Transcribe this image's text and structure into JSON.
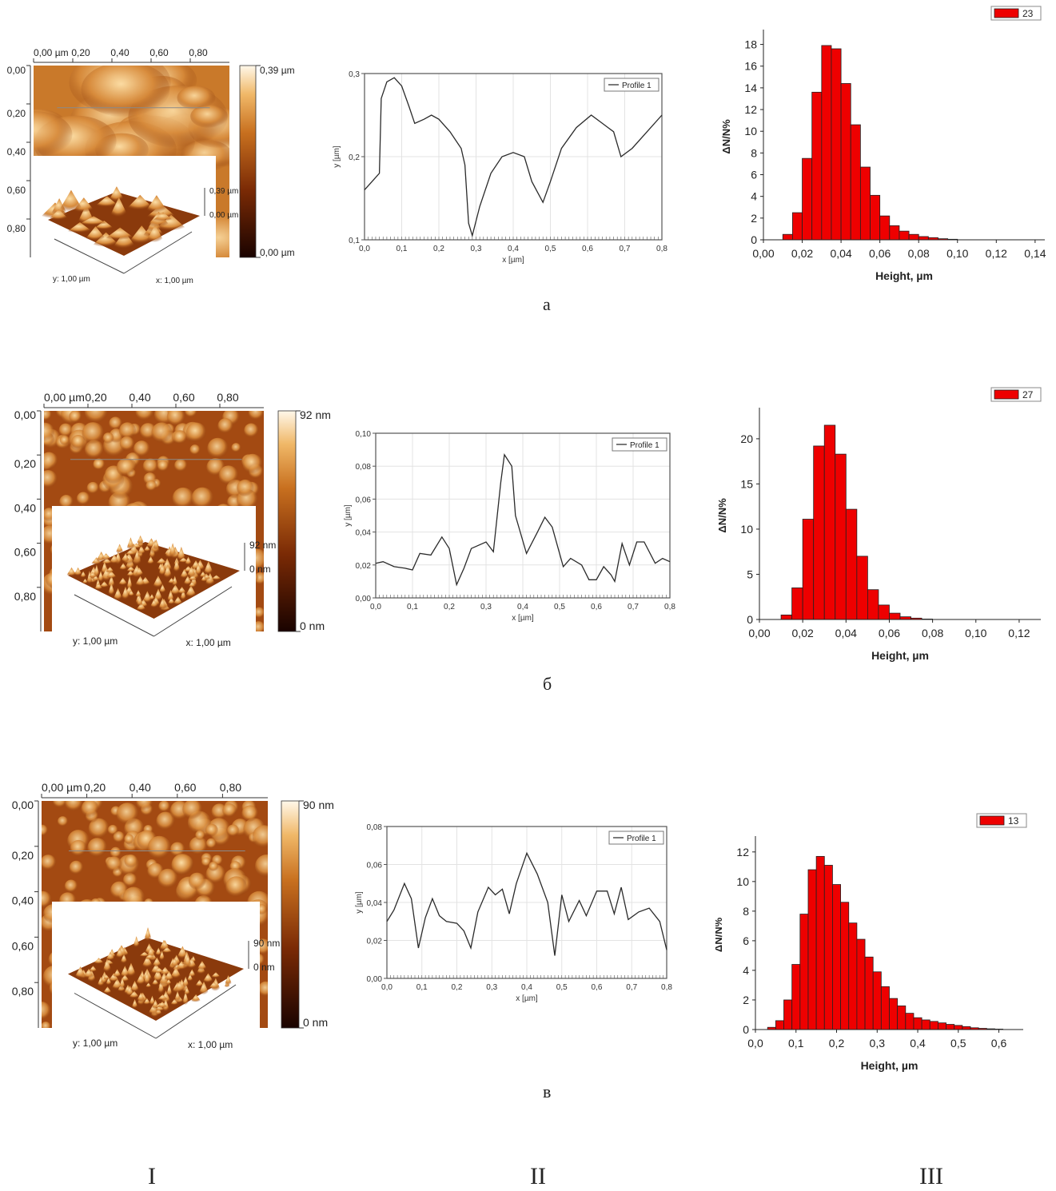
{
  "rows": [
    {
      "label": "а",
      "afm": {
        "x_ticks": [
          "0,00 µm",
          "0,20",
          "0,40",
          "0,60",
          "0,80"
        ],
        "y_ticks": [
          "0,00",
          "0,20",
          "0,40",
          "0,60",
          "0,80"
        ],
        "scale_max": "0,39 µm",
        "scale_min": "0,00 µm",
        "z_max": "0,39 µm",
        "z_min": "0,00 µm",
        "axis_y": "y: 1,00 µm",
        "axis_x": "x: 1,00 µm",
        "style": "coarse"
      },
      "profile": {
        "legend": "Profile 1",
        "ylabel": "y [µm]",
        "xlabel": "x [µm]",
        "x_ticks": [
          "0,0",
          "0,1",
          "0,2",
          "0,3",
          "0,4",
          "0,5",
          "0,6",
          "0,7",
          "0,8"
        ],
        "y_ticks": [
          "0,1",
          "0,2",
          "0,3"
        ],
        "xlim": [
          0,
          0.8
        ],
        "ylim": [
          0.1,
          0.3
        ],
        "points": [
          [
            0,
            0.16
          ],
          [
            0.02,
            0.17
          ],
          [
            0.04,
            0.18
          ],
          [
            0.045,
            0.27
          ],
          [
            0.06,
            0.29
          ],
          [
            0.08,
            0.295
          ],
          [
            0.1,
            0.285
          ],
          [
            0.12,
            0.26
          ],
          [
            0.135,
            0.24
          ],
          [
            0.16,
            0.245
          ],
          [
            0.18,
            0.25
          ],
          [
            0.2,
            0.245
          ],
          [
            0.23,
            0.23
          ],
          [
            0.26,
            0.21
          ],
          [
            0.27,
            0.19
          ],
          [
            0.28,
            0.12
          ],
          [
            0.29,
            0.105
          ],
          [
            0.31,
            0.14
          ],
          [
            0.34,
            0.18
          ],
          [
            0.37,
            0.2
          ],
          [
            0.4,
            0.205
          ],
          [
            0.43,
            0.2
          ],
          [
            0.45,
            0.17
          ],
          [
            0.48,
            0.145
          ],
          [
            0.5,
            0.17
          ],
          [
            0.53,
            0.21
          ],
          [
            0.57,
            0.235
          ],
          [
            0.61,
            0.25
          ],
          [
            0.64,
            0.24
          ],
          [
            0.67,
            0.23
          ],
          [
            0.69,
            0.2
          ],
          [
            0.72,
            0.21
          ],
          [
            0.76,
            0.23
          ],
          [
            0.8,
            0.25
          ]
        ]
      },
      "hist": {
        "legend": "23",
        "ylabel": "ΔN/N%",
        "xlabel": "Height, µm",
        "x_ticks": [
          "0,00",
          "0,02",
          "0,04",
          "0,06",
          "0,08",
          "0,10",
          "0,12",
          "0,14"
        ],
        "y_ticks": [
          "0",
          "2",
          "4",
          "6",
          "8",
          "10",
          "12",
          "14",
          "16",
          "18"
        ],
        "xlim": [
          0,
          0.145
        ],
        "ylim": [
          0,
          19
        ],
        "bin_width": 0.005,
        "bins": [
          [
            0.0125,
            0.5
          ],
          [
            0.0175,
            2.5
          ],
          [
            0.0225,
            7.5
          ],
          [
            0.0275,
            13.6
          ],
          [
            0.0325,
            17.9
          ],
          [
            0.0375,
            17.6
          ],
          [
            0.0425,
            14.4
          ],
          [
            0.0475,
            10.6
          ],
          [
            0.0525,
            6.7
          ],
          [
            0.0575,
            4.1
          ],
          [
            0.0625,
            2.2
          ],
          [
            0.0675,
            1.3
          ],
          [
            0.0725,
            0.8
          ],
          [
            0.0775,
            0.5
          ],
          [
            0.0825,
            0.3
          ],
          [
            0.0875,
            0.2
          ],
          [
            0.0925,
            0.1
          ],
          [
            0.0975,
            0.05
          ]
        ]
      }
    },
    {
      "label": "б",
      "afm": {
        "x_ticks": [
          "0,00 µm",
          "0,20",
          "0,40",
          "0,60",
          "0,80"
        ],
        "y_ticks": [
          "0,00",
          "0,20",
          "0,40",
          "0,60",
          "0,80"
        ],
        "scale_max": "92 nm",
        "scale_min": "0 nm",
        "z_max": "92 nm",
        "z_min": "0 nm",
        "axis_y": "y: 1,00 µm",
        "axis_x": "x: 1,00 µm",
        "style": "grains"
      },
      "profile": {
        "legend": "Profile 1",
        "ylabel": "y [µm]",
        "xlabel": "x [µm]",
        "x_ticks": [
          "0,0",
          "0,1",
          "0,2",
          "0,3",
          "0,4",
          "0,5",
          "0,6",
          "0,7",
          "0,8"
        ],
        "y_ticks": [
          "0,00",
          "0,02",
          "0,04",
          "0,06",
          "0,08",
          "0,10"
        ],
        "xlim": [
          0,
          0.8
        ],
        "ylim": [
          0,
          0.1
        ],
        "points": [
          [
            0,
            0.021
          ],
          [
            0.02,
            0.022
          ],
          [
            0.05,
            0.019
          ],
          [
            0.08,
            0.018
          ],
          [
            0.1,
            0.017
          ],
          [
            0.12,
            0.027
          ],
          [
            0.15,
            0.026
          ],
          [
            0.18,
            0.037
          ],
          [
            0.2,
            0.03
          ],
          [
            0.22,
            0.008
          ],
          [
            0.24,
            0.018
          ],
          [
            0.26,
            0.03
          ],
          [
            0.3,
            0.034
          ],
          [
            0.32,
            0.028
          ],
          [
            0.34,
            0.07
          ],
          [
            0.35,
            0.087
          ],
          [
            0.37,
            0.08
          ],
          [
            0.38,
            0.05
          ],
          [
            0.41,
            0.027
          ],
          [
            0.44,
            0.04
          ],
          [
            0.46,
            0.049
          ],
          [
            0.48,
            0.043
          ],
          [
            0.51,
            0.019
          ],
          [
            0.53,
            0.024
          ],
          [
            0.56,
            0.02
          ],
          [
            0.58,
            0.011
          ],
          [
            0.6,
            0.011
          ],
          [
            0.62,
            0.019
          ],
          [
            0.64,
            0.014
          ],
          [
            0.65,
            0.01
          ],
          [
            0.67,
            0.033
          ],
          [
            0.69,
            0.02
          ],
          [
            0.71,
            0.034
          ],
          [
            0.73,
            0.034
          ],
          [
            0.76,
            0.021
          ],
          [
            0.78,
            0.024
          ],
          [
            0.8,
            0.022
          ]
        ]
      },
      "hist": {
        "legend": "27",
        "ylabel": "ΔN/N%",
        "xlabel": "Height, µm",
        "x_ticks": [
          "0,00",
          "0,02",
          "0,04",
          "0,06",
          "0,08",
          "0,10",
          "0,12"
        ],
        "y_ticks": [
          "0",
          "5",
          "10",
          "15",
          "20"
        ],
        "xlim": [
          0,
          0.13
        ],
        "ylim": [
          0,
          23
        ],
        "bin_width": 0.005,
        "bins": [
          [
            0.0125,
            0.5
          ],
          [
            0.0175,
            3.5
          ],
          [
            0.0225,
            11.1
          ],
          [
            0.0275,
            19.2
          ],
          [
            0.0325,
            21.5
          ],
          [
            0.0375,
            18.3
          ],
          [
            0.0425,
            12.2
          ],
          [
            0.0475,
            7.0
          ],
          [
            0.0525,
            3.3
          ],
          [
            0.0575,
            1.6
          ],
          [
            0.0625,
            0.7
          ],
          [
            0.0675,
            0.3
          ],
          [
            0.0725,
            0.15
          ],
          [
            0.0775,
            0.05
          ]
        ]
      }
    },
    {
      "label": "в",
      "afm": {
        "x_ticks": [
          "0,00 µm",
          "0,20",
          "0,40",
          "0,60",
          "0,80"
        ],
        "y_ticks": [
          "0,00",
          "0,20",
          "0,40",
          "0,60",
          "0,80"
        ],
        "scale_max": "90 nm",
        "scale_min": "0 nm",
        "z_max": "90 nm",
        "z_min": "0 nm",
        "axis_y": "y: 1,00 µm",
        "axis_x": "x: 1,00 µm",
        "style": "grains"
      },
      "profile": {
        "legend": "Profile 1",
        "ylabel": "y [µm]",
        "xlabel": "x [µm]",
        "x_ticks": [
          "0,0",
          "0,1",
          "0,2",
          "0,3",
          "0,4",
          "0,5",
          "0,6",
          "0,7",
          "0,8"
        ],
        "y_ticks": [
          "0,00",
          "0,02",
          "0,04",
          "0,06",
          "0,08"
        ],
        "xlim": [
          0,
          0.8
        ],
        "ylim": [
          0,
          0.08
        ],
        "points": [
          [
            0,
            0.03
          ],
          [
            0.02,
            0.036
          ],
          [
            0.05,
            0.05
          ],
          [
            0.07,
            0.042
          ],
          [
            0.09,
            0.016
          ],
          [
            0.11,
            0.032
          ],
          [
            0.13,
            0.042
          ],
          [
            0.15,
            0.033
          ],
          [
            0.17,
            0.03
          ],
          [
            0.2,
            0.029
          ],
          [
            0.22,
            0.025
          ],
          [
            0.24,
            0.016
          ],
          [
            0.26,
            0.035
          ],
          [
            0.29,
            0.048
          ],
          [
            0.31,
            0.044
          ],
          [
            0.33,
            0.047
          ],
          [
            0.35,
            0.034
          ],
          [
            0.37,
            0.05
          ],
          [
            0.4,
            0.066
          ],
          [
            0.43,
            0.055
          ],
          [
            0.46,
            0.04
          ],
          [
            0.48,
            0.012
          ],
          [
            0.5,
            0.044
          ],
          [
            0.52,
            0.03
          ],
          [
            0.55,
            0.041
          ],
          [
            0.57,
            0.033
          ],
          [
            0.6,
            0.046
          ],
          [
            0.63,
            0.046
          ],
          [
            0.65,
            0.034
          ],
          [
            0.67,
            0.048
          ],
          [
            0.69,
            0.031
          ],
          [
            0.72,
            0.035
          ],
          [
            0.75,
            0.037
          ],
          [
            0.78,
            0.03
          ],
          [
            0.8,
            0.015
          ]
        ]
      },
      "hist": {
        "legend": "13",
        "ylabel": "ΔN/N%",
        "xlabel": "Height, µm",
        "x_ticks": [
          "0,0",
          "0,1",
          "0,2",
          "0,3",
          "0,4",
          "0,5",
          "0,6"
        ],
        "y_ticks": [
          "0",
          "2",
          "4",
          "6",
          "8",
          "10",
          "12"
        ],
        "xlim": [
          0,
          0.66
        ],
        "ylim": [
          0,
          12.8
        ],
        "bin_width": 0.02,
        "bins": [
          [
            0.04,
            0.15
          ],
          [
            0.06,
            0.6
          ],
          [
            0.08,
            2.0
          ],
          [
            0.1,
            4.4
          ],
          [
            0.12,
            7.8
          ],
          [
            0.14,
            10.8
          ],
          [
            0.16,
            11.7
          ],
          [
            0.18,
            11.1
          ],
          [
            0.2,
            9.8
          ],
          [
            0.22,
            8.6
          ],
          [
            0.24,
            7.2
          ],
          [
            0.26,
            6.1
          ],
          [
            0.28,
            4.9
          ],
          [
            0.3,
            3.9
          ],
          [
            0.32,
            2.9
          ],
          [
            0.34,
            2.1
          ],
          [
            0.36,
            1.6
          ],
          [
            0.38,
            1.1
          ],
          [
            0.4,
            0.8
          ],
          [
            0.42,
            0.65
          ],
          [
            0.44,
            0.55
          ],
          [
            0.46,
            0.45
          ],
          [
            0.48,
            0.35
          ],
          [
            0.5,
            0.28
          ],
          [
            0.52,
            0.2
          ],
          [
            0.54,
            0.12
          ],
          [
            0.56,
            0.08
          ],
          [
            0.58,
            0.05
          ],
          [
            0.6,
            0.03
          ]
        ]
      }
    }
  ],
  "columns": [
    "I",
    "II",
    "III"
  ],
  "colors": {
    "bar": "#ee0000",
    "line": "#2a2a2a",
    "afm_dark": "#3a0800",
    "afm_light": "#fff5e0"
  }
}
